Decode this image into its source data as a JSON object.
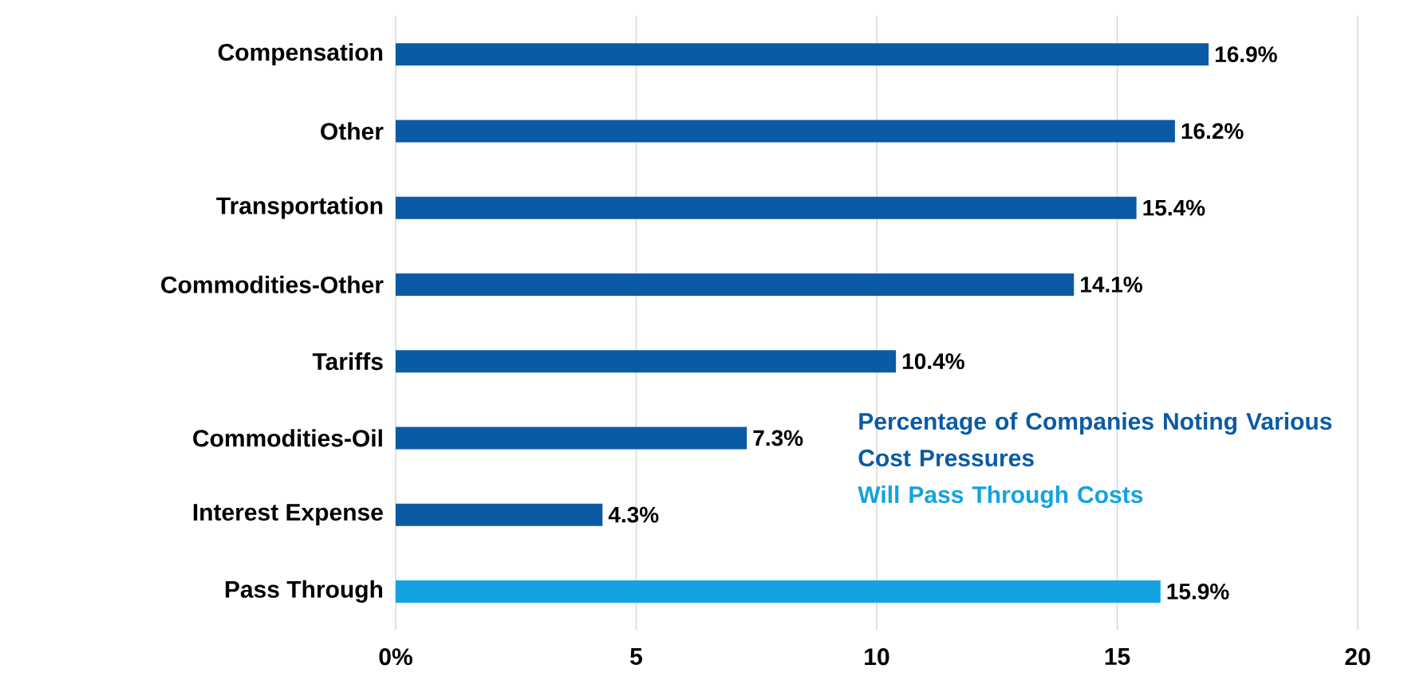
{
  "chart_data": {
    "type": "bar",
    "orientation": "horizontal",
    "categories": [
      "Compensation",
      "Other",
      "Transportation",
      "Commodities-Other",
      "Tariffs",
      "Commodities-Oil",
      "Interest Expense",
      "Pass Through"
    ],
    "series": [
      {
        "name": "Percentage of Companies Noting Various Cost Pressures",
        "color": "#0b5aa5",
        "values": [
          16.9,
          16.2,
          15.4,
          14.1,
          10.4,
          7.3,
          4.3,
          null
        ],
        "value_labels": [
          "16.9%",
          "16.2%",
          "15.4%",
          "14.1%",
          "10.4%",
          "7.3%",
          "4.3%",
          null
        ]
      },
      {
        "name": "Will Pass Through Costs",
        "color": "#12a3e0",
        "values": [
          null,
          null,
          null,
          null,
          null,
          null,
          null,
          15.9
        ],
        "value_labels": [
          null,
          null,
          null,
          null,
          null,
          null,
          null,
          "15.9%"
        ]
      }
    ],
    "xlim": [
      0,
      20
    ],
    "xticks": [
      {
        "value": 0,
        "label": "0%"
      },
      5,
      10,
      15,
      20
    ],
    "grid": "x",
    "legend": "bottom right"
  }
}
